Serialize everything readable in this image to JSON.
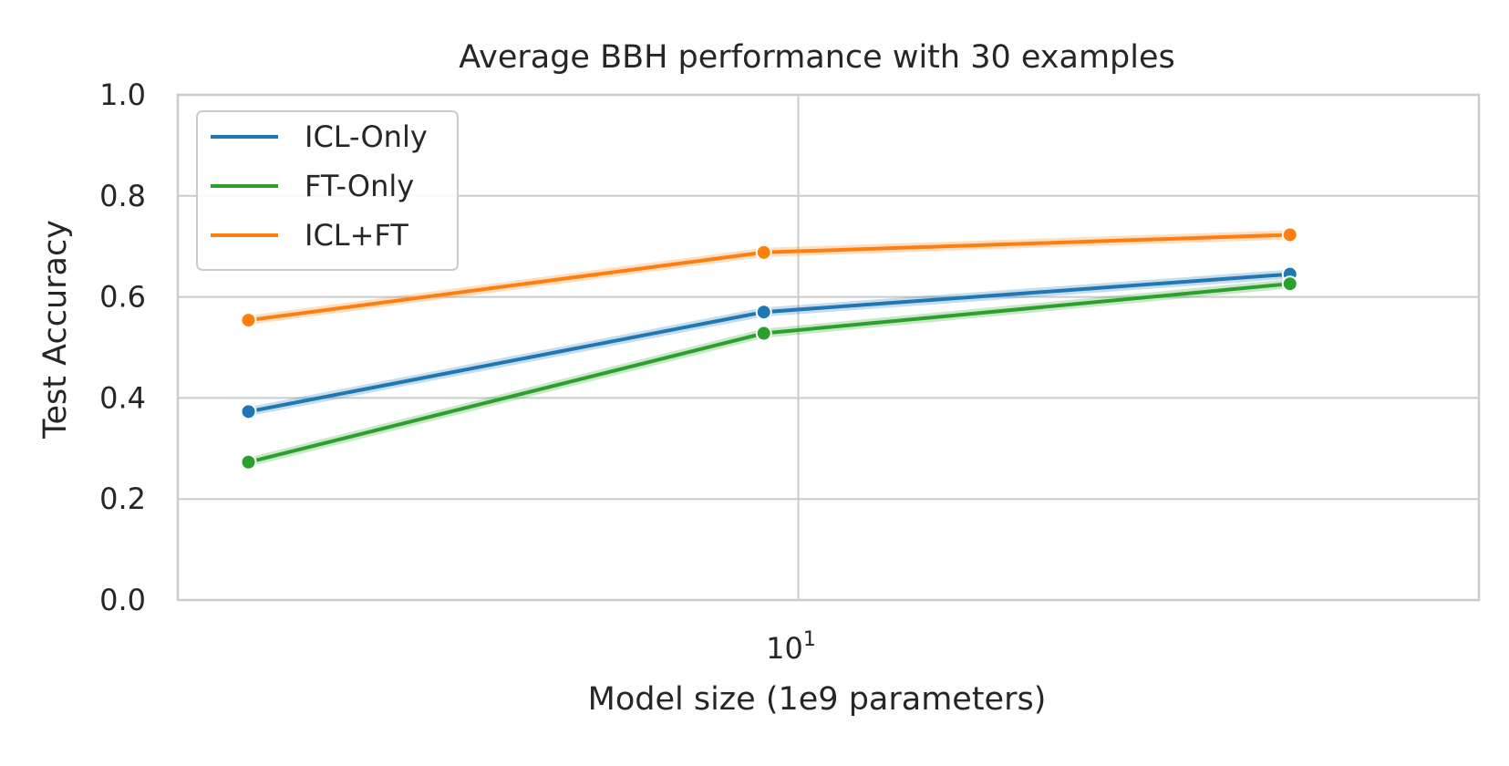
{
  "chart_data": {
    "type": "line",
    "title": "Average BBH performance with 30 examples",
    "xlabel": "Model size (1e9 parameters)",
    "ylabel": "Test Accuracy",
    "xscale": "log",
    "x": [
      1.3,
      8.8,
      62
    ],
    "xlim": [
      1.0,
      125
    ],
    "ylim": [
      0.0,
      1.0
    ],
    "y_ticks": [
      "0.0",
      "0.2",
      "0.4",
      "0.6",
      "0.8",
      "1.0"
    ],
    "x_tick": {
      "base": "10",
      "exponent": "1",
      "value": 10
    },
    "grid": true,
    "legend_position": "top-left",
    "series": [
      {
        "name": "ICL-Only",
        "values": [
          0.373,
          0.57,
          0.645
        ],
        "color": "#1f77b4"
      },
      {
        "name": "FT-Only",
        "values": [
          0.273,
          0.528,
          0.626
        ],
        "color": "#2ca02c"
      },
      {
        "name": "ICL+FT",
        "values": [
          0.554,
          0.688,
          0.723
        ],
        "color": "#ff7f0e"
      }
    ]
  }
}
